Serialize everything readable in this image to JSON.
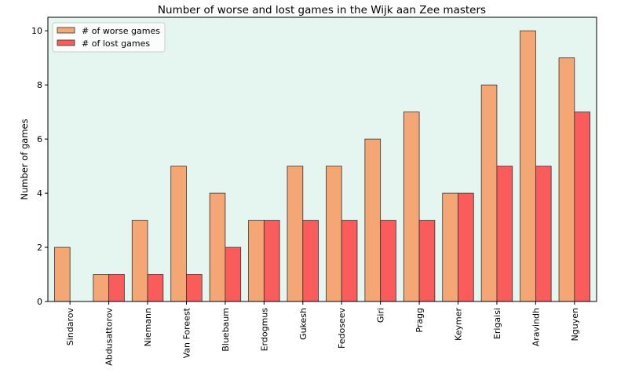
{
  "chart_data": {
    "type": "bar",
    "title": "Number of worse and lost games in the Wijk aan Zee masters",
    "xlabel": "",
    "ylabel": "Number of games",
    "categories": [
      "Sindarov",
      "Abdusattorov",
      "Niemann",
      "Van Foreest",
      "Bluebaum",
      "Erdogmus",
      "Gukesh",
      "Fedoseev",
      "Giri",
      "Pragg",
      "Keymer",
      "Erigaisi",
      "Aravindh",
      "Nguyen"
    ],
    "series": [
      {
        "name": "# of worse games",
        "color": "#f4a674",
        "values": [
          2,
          1,
          3,
          5,
          4,
          3,
          5,
          5,
          6,
          7,
          4,
          8,
          10,
          9
        ]
      },
      {
        "name": "# of lost games",
        "color": "#fa5b5b",
        "values": [
          0,
          1,
          1,
          1,
          2,
          3,
          3,
          3,
          3,
          3,
          4,
          5,
          5,
          7
        ]
      }
    ],
    "ylim": [
      0,
      10.5
    ],
    "yticks": [
      0,
      2,
      4,
      6,
      8,
      10
    ],
    "grid": false,
    "legend": "top-left",
    "background": "#e5f5ef"
  }
}
